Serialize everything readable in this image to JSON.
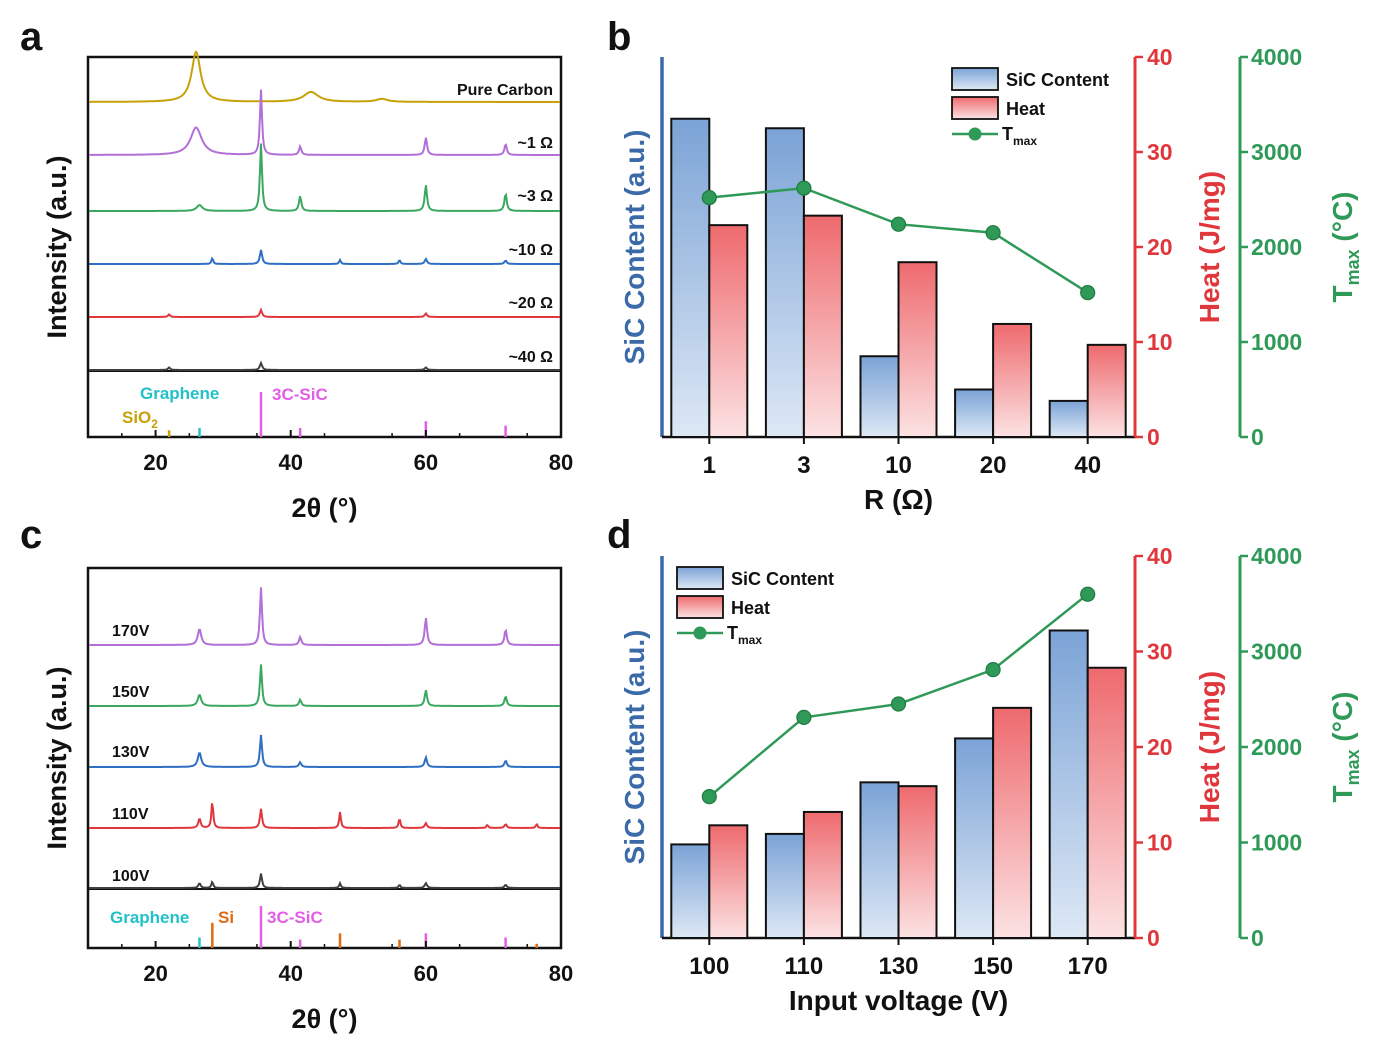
{
  "colors": {
    "carbon": "#c8a00a",
    "purple": "#b26fd6",
    "green": "#3aa861",
    "blue": "#2f6fc2",
    "red": "#e0373c",
    "black": "#404040",
    "cyan": "#22c0c8",
    "magenta": "#e45de6",
    "orange": "#e06a12",
    "siccontent": "#3a6aa8",
    "heat": "#e0373c",
    "tmax": "#2f9a58",
    "bar_blue_top": "#7ba3d6",
    "bar_blue_bottom": "#dde8f5",
    "bar_red_top": "#ee6a6e",
    "bar_red_bottom": "#fce2e3"
  },
  "chart_data": [
    {
      "panel": "a",
      "type": "line",
      "xlabel": "2θ (°)",
      "ylabel": "Intensity (a.u.)",
      "xlim": [
        10,
        80
      ],
      "xticks": [
        20,
        40,
        60,
        80
      ],
      "series": [
        {
          "name": "Pure Carbon",
          "color": "carbon",
          "peaks": [
            [
              26,
              1.0,
              0.8
            ],
            [
              43,
              0.2,
              1.3
            ],
            [
              53.5,
              0.06,
              1.0
            ]
          ]
        },
        {
          "name": "~1 Ω",
          "color": "purple",
          "peaks": [
            [
              26,
              0.55,
              1.0
            ],
            [
              35.6,
              1.3,
              0.18
            ],
            [
              41.4,
              0.17,
              0.2
            ],
            [
              60,
              0.35,
              0.2
            ],
            [
              71.8,
              0.22,
              0.2
            ]
          ]
        },
        {
          "name": "~3 Ω",
          "color": "green",
          "peaks": [
            [
              26.5,
              0.12,
              0.5
            ],
            [
              35.6,
              1.35,
              0.18
            ],
            [
              41.4,
              0.3,
              0.2
            ],
            [
              60,
              0.52,
              0.2
            ],
            [
              71.8,
              0.35,
              0.2
            ]
          ]
        },
        {
          "name": "~10 Ω",
          "color": "blue",
          "peaks": [
            [
              28.4,
              0.12,
              0.15
            ],
            [
              35.6,
              0.28,
              0.2
            ],
            [
              47.3,
              0.08,
              0.15
            ],
            [
              56.1,
              0.08,
              0.15
            ],
            [
              60,
              0.1,
              0.2
            ],
            [
              71.8,
              0.07,
              0.2
            ]
          ]
        },
        {
          "name": "~20 Ω",
          "color": "red",
          "peaks": [
            [
              22,
              0.05,
              0.2
            ],
            [
              35.6,
              0.14,
              0.2
            ],
            [
              60,
              0.07,
              0.2
            ]
          ]
        },
        {
          "name": "~40 Ω",
          "color": "black",
          "peaks": [
            [
              22,
              0.05,
              0.2
            ],
            [
              35.6,
              0.14,
              0.2
            ],
            [
              60,
              0.05,
              0.2
            ]
          ]
        }
      ],
      "references": [
        {
          "label": "Graphene",
          "color": "cyan",
          "positions": [
            26.5
          ],
          "heights": [
            0.2
          ]
        },
        {
          "label": "SiO",
          "subscript": "2",
          "color": "carbon",
          "positions": [
            22
          ],
          "heights": [
            0.15
          ]
        },
        {
          "label": "3C-SiC",
          "color": "magenta",
          "positions": [
            35.6,
            41.4,
            60,
            71.8
          ],
          "heights": [
            1.0,
            0.2,
            0.35,
            0.25
          ]
        }
      ]
    },
    {
      "panel": "b",
      "type": "bar",
      "xlabel": "R (Ω)",
      "categories": [
        "1",
        "3",
        "10",
        "20",
        "40"
      ],
      "series": [
        {
          "name": "SiC Content",
          "axis": "left",
          "values": [
            33.5,
            32.5,
            8.5,
            5,
            3.8
          ]
        },
        {
          "name": "Heat",
          "axis": "right1",
          "values": [
            22.3,
            23.3,
            18.4,
            11.9,
            9.7
          ]
        },
        {
          "name": "T",
          "subscript": "max",
          "axis": "right2",
          "type": "line",
          "values": [
            2520,
            2620,
            2240,
            2150,
            1520
          ]
        }
      ],
      "left_axis": {
        "label": "SiC Content (a.u.)",
        "ylim": [
          0,
          40
        ]
      },
      "right_axis_1": {
        "label": "Heat (J/mg)",
        "ylim": [
          0,
          40
        ],
        "ticks": [
          0,
          10,
          20,
          30,
          40
        ]
      },
      "right_axis_2": {
        "label": "T",
        "label_sub": "max",
        "label_tail": " (°C)",
        "ylim": [
          0,
          4000
        ],
        "ticks": [
          0,
          1000,
          2000,
          3000,
          4000
        ]
      }
    },
    {
      "panel": "c",
      "type": "line",
      "xlabel": "2θ (°)",
      "ylabel": "Intensity (a.u.)",
      "xlim": [
        10,
        80
      ],
      "xticks": [
        20,
        40,
        60,
        80
      ],
      "series": [
        {
          "name": "170V",
          "color": "purple",
          "peaks": [
            [
              26.5,
              0.5,
              0.3
            ],
            [
              35.6,
              1.8,
              0.18
            ],
            [
              41.4,
              0.25,
              0.2
            ],
            [
              60,
              0.85,
              0.2
            ],
            [
              71.8,
              0.48,
              0.2
            ]
          ]
        },
        {
          "name": "150V",
          "color": "green",
          "peaks": [
            [
              26.5,
              0.35,
              0.3
            ],
            [
              35.6,
              1.3,
              0.18
            ],
            [
              41.4,
              0.2,
              0.2
            ],
            [
              60,
              0.5,
              0.2
            ],
            [
              71.8,
              0.3,
              0.2
            ]
          ]
        },
        {
          "name": "130V",
          "color": "blue",
          "peaks": [
            [
              26.5,
              0.45,
              0.3
            ],
            [
              35.6,
              1.0,
              0.18
            ],
            [
              41.4,
              0.15,
              0.2
            ],
            [
              60,
              0.3,
              0.2
            ],
            [
              71.8,
              0.2,
              0.2
            ]
          ]
        },
        {
          "name": "110V",
          "color": "red",
          "peaks": [
            [
              26.5,
              0.3,
              0.2
            ],
            [
              28.4,
              0.85,
              0.15
            ],
            [
              35.6,
              0.6,
              0.18
            ],
            [
              47.3,
              0.5,
              0.15
            ],
            [
              56.1,
              0.3,
              0.15
            ],
            [
              60,
              0.15,
              0.2
            ],
            [
              69.1,
              0.1,
              0.15
            ],
            [
              71.8,
              0.12,
              0.2
            ],
            [
              76.4,
              0.12,
              0.15
            ]
          ]
        },
        {
          "name": "100V",
          "color": "black",
          "peaks": [
            [
              26.5,
              0.15,
              0.2
            ],
            [
              28.4,
              0.2,
              0.15
            ],
            [
              35.6,
              0.45,
              0.18
            ],
            [
              47.3,
              0.15,
              0.15
            ],
            [
              56.1,
              0.1,
              0.15
            ],
            [
              60,
              0.15,
              0.2
            ],
            [
              71.8,
              0.1,
              0.2
            ]
          ]
        }
      ],
      "references": [
        {
          "label": "Graphene",
          "color": "cyan",
          "positions": [
            26.5
          ],
          "heights": [
            0.25
          ]
        },
        {
          "label": "Si",
          "color": "orange",
          "positions": [
            28.4,
            47.3,
            56.1,
            76.4
          ],
          "heights": [
            0.6,
            0.35,
            0.2,
            0.1
          ]
        },
        {
          "label": "3C-SiC",
          "color": "magenta",
          "positions": [
            35.6,
            41.4,
            60,
            71.8
          ],
          "heights": [
            1.0,
            0.2,
            0.35,
            0.25
          ]
        }
      ]
    },
    {
      "panel": "d",
      "type": "bar",
      "xlabel": "Input voltage (V)",
      "categories": [
        "100",
        "110",
        "130",
        "150",
        "170"
      ],
      "series": [
        {
          "name": "SiC Content",
          "axis": "left",
          "values": [
            9.8,
            10.9,
            16.3,
            20.9,
            32.2
          ]
        },
        {
          "name": "Heat",
          "axis": "right1",
          "values": [
            11.8,
            13.2,
            15.9,
            24.1,
            28.3
          ]
        },
        {
          "name": "T",
          "subscript": "max",
          "axis": "right2",
          "type": "line",
          "values": [
            1480,
            2310,
            2450,
            2810,
            3600
          ]
        }
      ],
      "left_axis": {
        "label": "SiC Content (a.u.)",
        "ylim": [
          0,
          40
        ]
      },
      "right_axis_1": {
        "label": "Heat (J/mg)",
        "ylim": [
          0,
          40
        ],
        "ticks": [
          0,
          10,
          20,
          30,
          40
        ]
      },
      "right_axis_2": {
        "label": "T",
        "label_sub": "max",
        "label_tail": " (°C)",
        "ylim": [
          0,
          4000
        ],
        "ticks": [
          0,
          1000,
          2000,
          3000,
          4000
        ]
      }
    }
  ]
}
